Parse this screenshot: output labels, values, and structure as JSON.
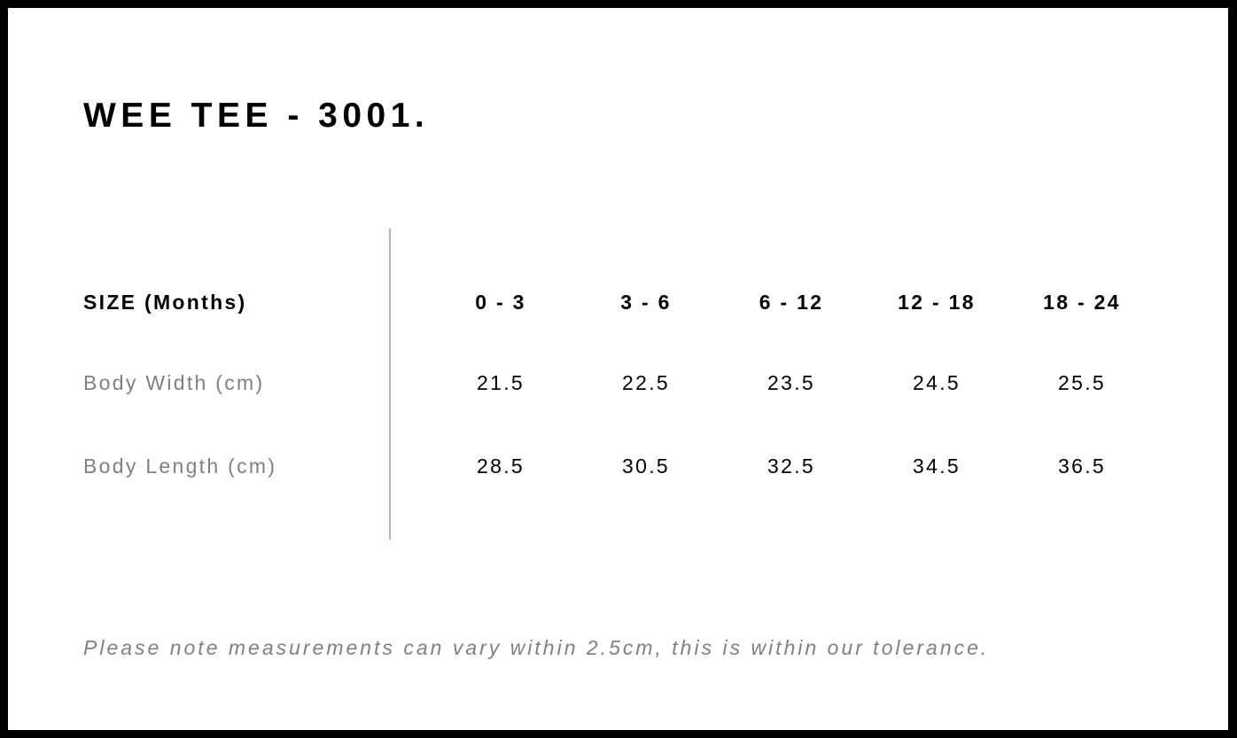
{
  "title": "WEE TEE - 3001.",
  "table": {
    "header": {
      "label": "SIZE (Months)",
      "values": [
        "0 - 3",
        "3 - 6",
        "6 - 12",
        "12 - 18",
        "18 - 24"
      ]
    },
    "rows": [
      {
        "label": "Body Width (cm)",
        "values": [
          "21.5",
          "22.5",
          "23.5",
          "24.5",
          "25.5"
        ]
      },
      {
        "label": "Body Length (cm)",
        "values": [
          "28.5",
          "30.5",
          "32.5",
          "34.5",
          "36.5"
        ]
      }
    ]
  },
  "note": "Please note measurements can vary within 2.5cm, this is within our tolerance.",
  "colors": {
    "border": "#000000",
    "label_gray": "#808080",
    "divider": "#b0b0b0"
  }
}
